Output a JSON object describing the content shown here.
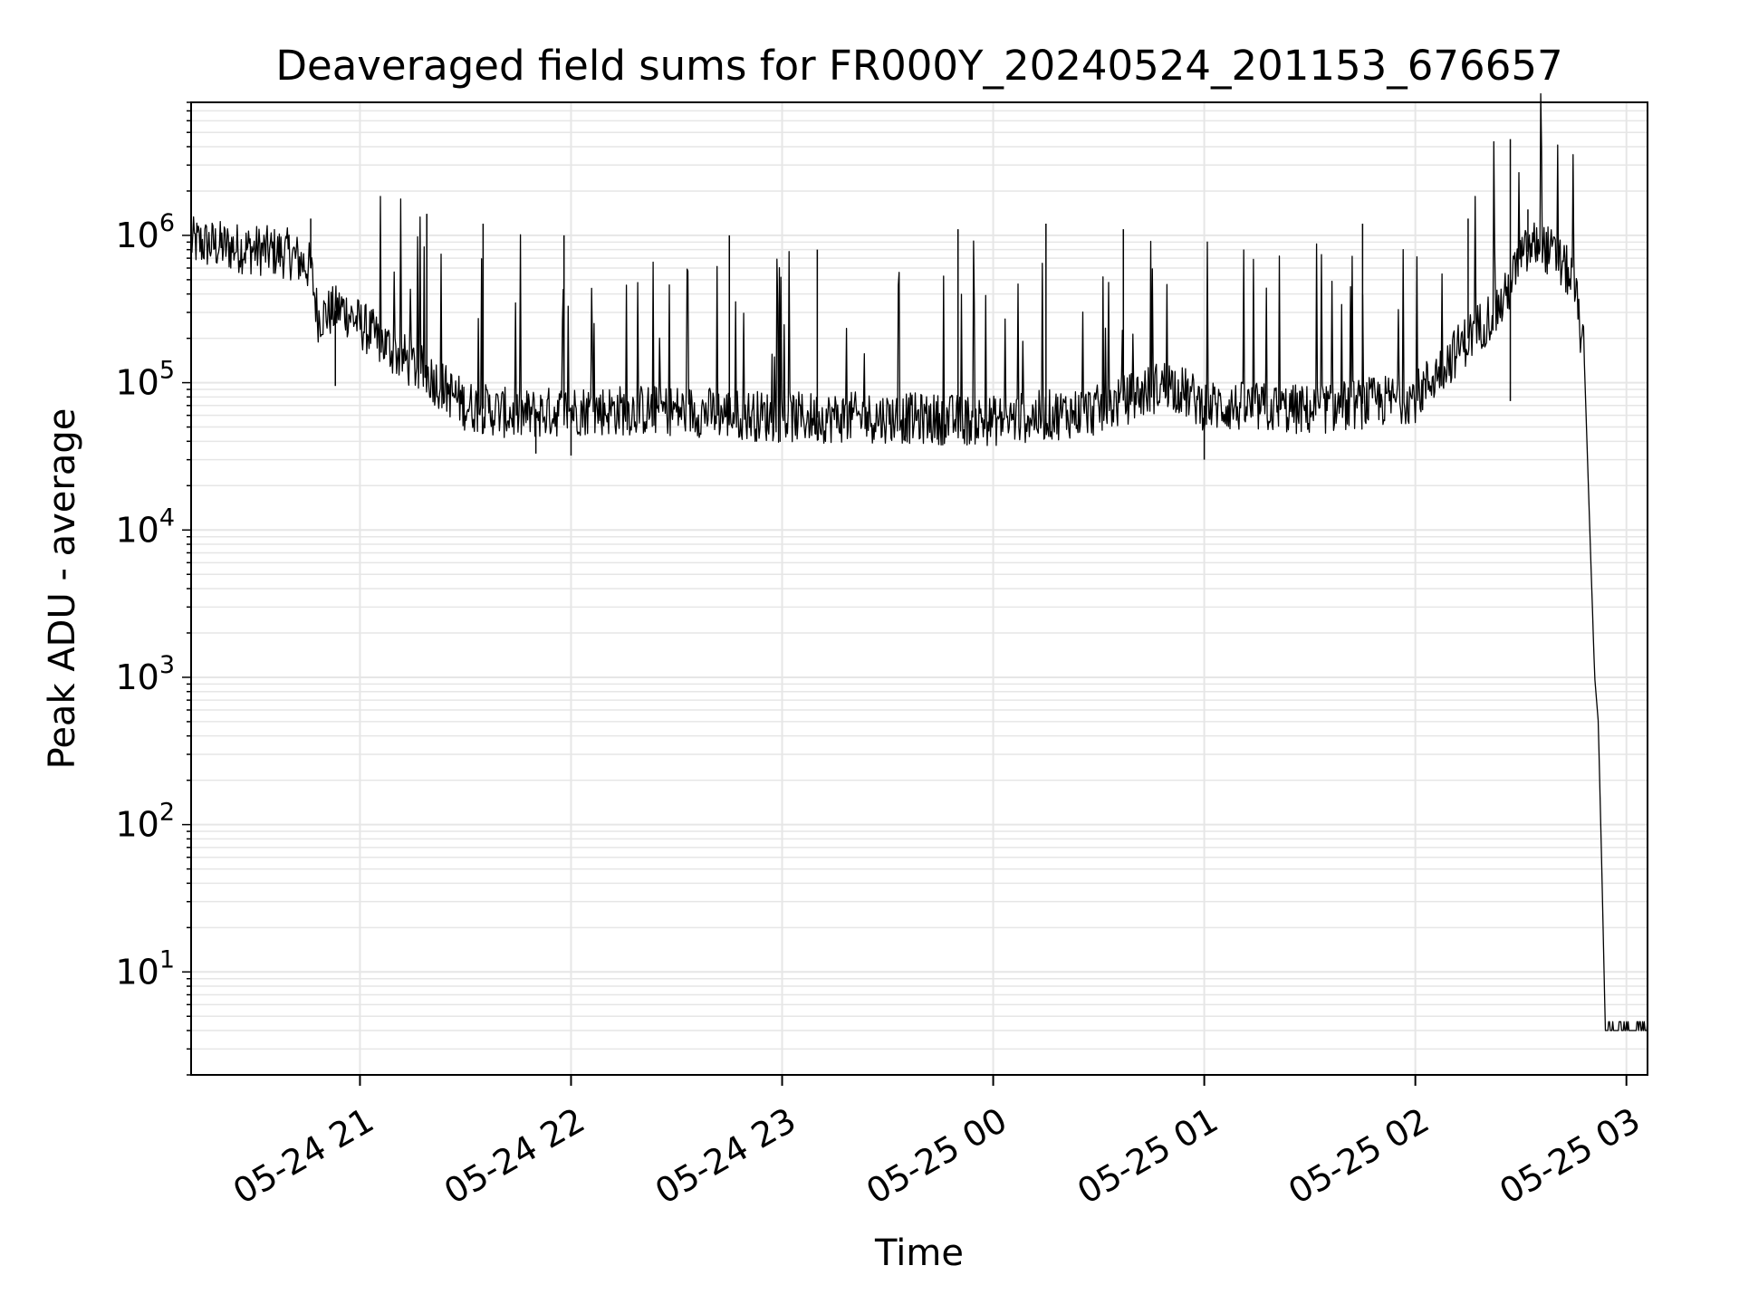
{
  "chart_data": {
    "type": "line",
    "title": "Deaveraged field sums for FR000Y_20240524_201153_676657",
    "xlabel": "Time",
    "ylabel": "Peak ADU - average",
    "x_axis": {
      "type": "time",
      "range": [
        "2024-05-24 20:12",
        "2024-05-25 03:06"
      ],
      "ticks": [
        "05-24 21",
        "05-24 22",
        "05-24 23",
        "05-25 00",
        "05-25 01",
        "05-25 02",
        "05-25 03"
      ],
      "tick_values": [
        "2024-05-24 21:00",
        "2024-05-24 22:00",
        "2024-05-24 23:00",
        "2024-05-25 00:00",
        "2024-05-25 01:00",
        "2024-05-25 02:00",
        "2024-05-25 03:00"
      ]
    },
    "y_axis": {
      "scale": "log",
      "range": [
        2,
        8000000
      ],
      "ticks": [
        {
          "base": "10",
          "exp": "1",
          "value": 10
        },
        {
          "base": "10",
          "exp": "2",
          "value": 100
        },
        {
          "base": "10",
          "exp": "3",
          "value": 1000
        },
        {
          "base": "10",
          "exp": "4",
          "value": 10000
        },
        {
          "base": "10",
          "exp": "5",
          "value": 100000
        },
        {
          "base": "10",
          "exp": "6",
          "value": 1000000
        }
      ]
    },
    "grid": true,
    "line_color": "#000000",
    "grid_color": "#e6e6e6",
    "series": [
      {
        "points": [
          [
            "2024-05-24 20:12",
            900000
          ],
          [
            "2024-05-24 20:20",
            850000
          ],
          [
            "2024-05-24 20:30",
            800000
          ],
          [
            "2024-05-24 20:40",
            750000
          ],
          [
            "2024-05-24 20:46",
            600000
          ],
          [
            "2024-05-24 20:48",
            280000
          ],
          [
            "2024-05-24 20:55",
            320000
          ],
          [
            "2024-05-24 21:00",
            250000
          ],
          [
            "2024-05-24 21:10",
            160000
          ],
          [
            "2024-05-24 21:20",
            110000
          ],
          [
            "2024-05-24 21:30",
            70000
          ],
          [
            "2024-05-24 21:45",
            60000
          ],
          [
            "2024-05-24 22:00",
            65000
          ],
          [
            "2024-05-24 22:30",
            65000
          ],
          [
            "2024-05-24 23:00",
            58000
          ],
          [
            "2024-05-24 23:30",
            58000
          ],
          [
            "2024-05-25 00:00",
            55000
          ],
          [
            "2024-05-25 00:15",
            60000
          ],
          [
            "2024-05-25 00:30",
            65000
          ],
          [
            "2024-05-25 00:50",
            100000
          ],
          [
            "2024-05-25 01:00",
            70000
          ],
          [
            "2024-05-25 01:30",
            65000
          ],
          [
            "2024-05-25 02:00",
            80000
          ],
          [
            "2024-05-25 02:15",
            200000
          ],
          [
            "2024-05-25 02:25",
            350000
          ],
          [
            "2024-05-25 02:30",
            700000
          ],
          [
            "2024-05-25 02:35",
            900000
          ],
          [
            "2024-05-25 02:40",
            700000
          ],
          [
            "2024-05-25 02:45",
            500000
          ],
          [
            "2024-05-25 02:48",
            150000
          ],
          [
            "2024-05-25 02:50",
            5000
          ],
          [
            "2024-05-25 02:51",
            1000
          ],
          [
            "2024-05-25 02:52",
            500
          ],
          [
            "2024-05-25 02:53",
            50
          ],
          [
            "2024-05-25 02:54",
            4
          ],
          [
            "2024-05-25 03:06",
            4
          ]
        ]
      }
    ],
    "spikes": [
      [
        "2024-05-24 20:46",
        1300000
      ],
      [
        "2024-05-24 20:53",
        95000
      ],
      [
        "2024-05-24 21:19",
        1400000
      ],
      [
        "2024-05-24 21:35",
        1200000
      ],
      [
        "2024-05-24 21:50",
        33000
      ],
      [
        "2024-05-24 21:58",
        1000000
      ],
      [
        "2024-05-24 22:00",
        32000
      ],
      [
        "2024-05-24 22:45",
        1000000
      ],
      [
        "2024-05-24 23:10",
        800000
      ],
      [
        "2024-05-24 23:35",
        40000
      ],
      [
        "2024-05-24 23:50",
        1100000
      ],
      [
        "2024-05-25 00:15",
        1200000
      ],
      [
        "2024-05-25 00:37",
        1100000
      ],
      [
        "2024-05-25 01:00",
        30000
      ],
      [
        "2024-05-25 01:45",
        1200000
      ],
      [
        "2024-05-25 02:15",
        1300000
      ],
      [
        "2024-05-25 02:27",
        4500000
      ],
      [
        "2024-05-25 02:27",
        75000
      ],
      [
        "2024-05-25 02:32",
        1500000
      ]
    ]
  }
}
